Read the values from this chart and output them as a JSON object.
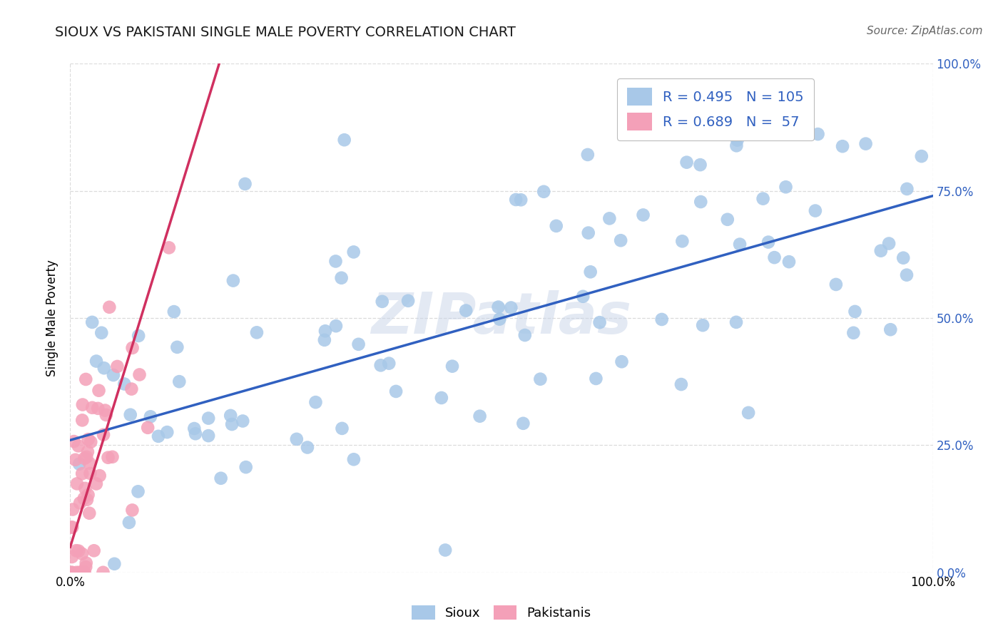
{
  "title": "SIOUX VS PAKISTANI SINGLE MALE POVERTY CORRELATION CHART",
  "source": "Source: ZipAtlas.com",
  "ylabel": "Single Male Poverty",
  "sioux_R": 0.495,
  "sioux_N": 105,
  "pakistani_R": 0.689,
  "pakistani_N": 57,
  "sioux_color": "#a8c8e8",
  "pakistani_color": "#f4a0b8",
  "sioux_line_color": "#3060c0",
  "pakistani_line_color": "#d03060",
  "watermark": "ZIPatlas",
  "background_color": "#ffffff",
  "grid_color": "#cccccc",
  "right_tick_color": "#3060c0",
  "title_color": "#1a1a1a",
  "source_color": "#666666"
}
